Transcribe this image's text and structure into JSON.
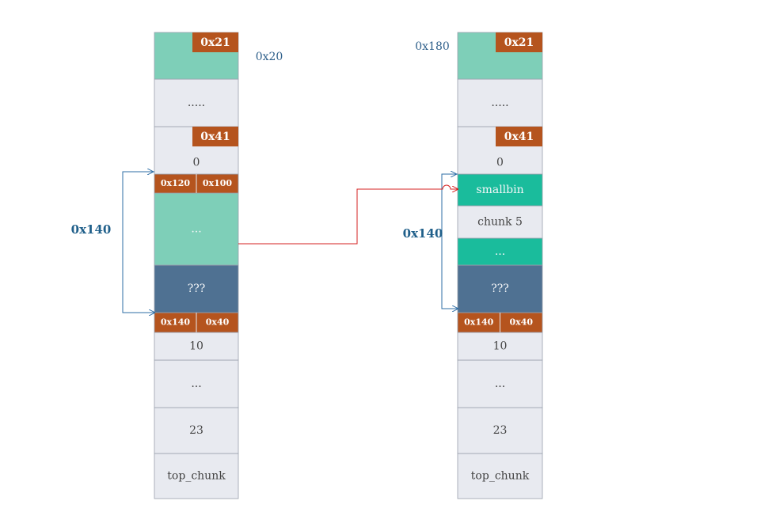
{
  "left": {
    "note": "0x20",
    "span": "0x140",
    "cells": [
      {
        "tag": "0x21"
      },
      {
        "text": "....."
      },
      {
        "tag": "0x41",
        "text": "0"
      },
      {
        "tags": [
          "0x120",
          "0x100"
        ]
      },
      {
        "text": "..."
      },
      {
        "text": "???"
      },
      {
        "tags": [
          "0x140",
          "0x40"
        ]
      },
      {
        "text": "10"
      },
      {
        "text": "..."
      },
      {
        "text": "23"
      },
      {
        "text": "top_chunk"
      }
    ]
  },
  "right": {
    "note": "0x180",
    "span": "0x140",
    "cells": [
      {
        "tag": "0x21"
      },
      {
        "text": "....."
      },
      {
        "tag": "0x41",
        "text": "0"
      },
      {
        "text": "smallbin"
      },
      {
        "text": "chunk 5"
      },
      {
        "text": "..."
      },
      {
        "text": "???"
      },
      {
        "tags": [
          "0x140",
          "0x40"
        ]
      },
      {
        "text": "10"
      },
      {
        "text": "..."
      },
      {
        "text": "23"
      },
      {
        "text": "top_chunk"
      }
    ]
  }
}
